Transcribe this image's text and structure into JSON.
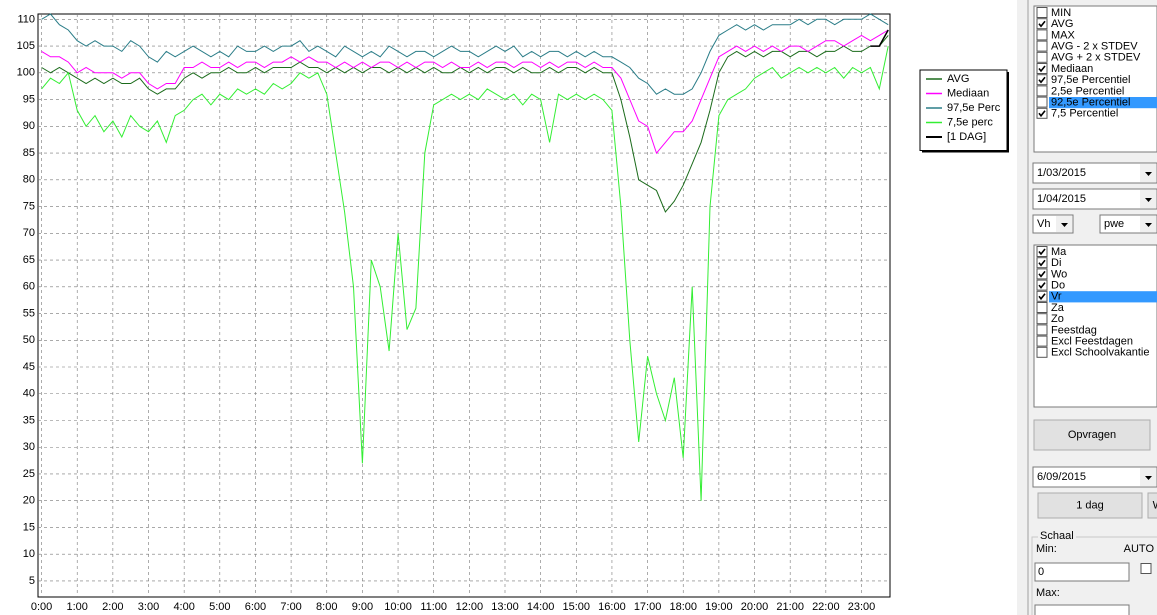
{
  "chart_data": {
    "type": "line",
    "x": [
      0,
      0.25,
      0.5,
      0.75,
      1,
      1.25,
      1.5,
      1.75,
      2,
      2.25,
      2.5,
      2.75,
      3,
      3.25,
      3.5,
      3.75,
      4,
      4.25,
      4.5,
      4.75,
      5,
      5.25,
      5.5,
      5.75,
      6,
      6.25,
      6.5,
      6.75,
      7,
      7.25,
      7.5,
      7.75,
      8,
      8.25,
      8.5,
      8.75,
      9,
      9.25,
      9.5,
      9.75,
      10,
      10.25,
      10.5,
      10.75,
      11,
      11.25,
      11.5,
      11.75,
      12,
      12.25,
      12.5,
      12.75,
      13,
      13.25,
      13.5,
      13.75,
      14,
      14.25,
      14.5,
      14.75,
      15,
      15.25,
      15.5,
      15.75,
      16,
      16.25,
      16.5,
      16.75,
      17,
      17.25,
      17.5,
      17.75,
      18,
      18.25,
      18.5,
      18.75,
      19,
      19.25,
      19.5,
      19.75,
      20,
      20.25,
      20.5,
      20.75,
      21,
      21.25,
      21.5,
      21.75,
      22,
      22.25,
      22.5,
      22.75,
      23,
      23.25,
      23.5,
      23.75
    ],
    "series": [
      {
        "name": "AVG",
        "color": "#1b6b1b",
        "values": [
          101,
          100,
          101,
          100,
          99,
          98,
          99,
          98,
          99,
          98,
          98,
          99,
          97,
          96,
          97,
          97,
          99,
          100,
          99,
          100,
          100,
          101,
          100,
          100,
          101,
          100,
          101,
          101,
          101,
          102,
          101,
          101,
          100,
          101,
          100,
          101,
          100,
          101,
          101,
          100,
          101,
          100,
          101,
          100,
          101,
          100,
          100,
          101,
          100,
          101,
          100,
          101,
          101,
          100,
          101,
          100,
          100,
          101,
          100,
          101,
          101,
          100,
          101,
          100,
          100,
          95,
          88,
          80,
          79,
          78,
          74,
          76,
          79,
          83,
          87,
          93,
          100,
          103,
          104,
          103,
          104,
          103,
          104,
          104,
          103,
          104,
          104,
          103,
          104,
          104,
          105,
          104,
          104,
          105,
          105,
          107
        ]
      },
      {
        "name": "Mediaan",
        "color": "#ff00ff",
        "values": [
          104,
          103,
          103,
          102,
          100,
          101,
          100,
          100,
          100,
          99,
          100,
          100,
          98,
          97,
          98,
          98,
          101,
          101,
          102,
          101,
          101,
          102,
          101,
          102,
          102,
          101,
          102,
          102,
          103,
          102,
          103,
          102,
          102,
          101,
          102,
          101,
          102,
          101,
          102,
          102,
          101,
          102,
          101,
          102,
          102,
          101,
          102,
          101,
          101,
          102,
          101,
          102,
          102,
          101,
          102,
          102,
          101,
          102,
          101,
          102,
          102,
          101,
          102,
          101,
          101,
          99,
          95,
          91,
          90,
          85,
          87,
          89,
          89,
          91,
          95,
          99,
          103,
          104,
          105,
          104,
          105,
          104,
          105,
          104,
          105,
          105,
          104,
          105,
          106,
          106,
          105,
          106,
          107,
          106,
          107,
          108
        ]
      },
      {
        "name": "97,5e Perc",
        "color": "#2b7d88",
        "values": [
          110,
          111,
          109,
          108,
          106,
          105,
          106,
          105,
          105,
          104,
          106,
          105,
          103,
          102,
          104,
          103,
          104,
          105,
          104,
          103,
          104,
          103,
          105,
          104,
          104,
          105,
          104,
          105,
          105,
          106,
          104,
          105,
          104,
          103,
          105,
          104,
          103,
          104,
          103,
          105,
          104,
          103,
          104,
          104,
          103,
          104,
          105,
          104,
          104,
          103,
          104,
          105,
          104,
          105,
          103,
          104,
          103,
          104,
          104,
          103,
          104,
          103,
          104,
          103,
          103,
          102,
          101,
          99,
          98,
          96,
          97,
          96,
          96,
          97,
          100,
          104,
          107,
          108,
          109,
          108,
          109,
          108,
          109,
          109,
          109,
          110,
          109,
          110,
          110,
          109,
          110,
          110,
          110,
          111,
          110,
          109
        ]
      },
      {
        "name": "7,5e perc",
        "color": "#33ee33",
        "values": [
          97,
          99,
          98,
          100,
          93,
          90,
          92,
          89,
          91,
          88,
          92,
          90,
          89,
          91,
          87,
          92,
          93,
          95,
          96,
          94,
          96,
          95,
          97,
          96,
          97,
          96,
          98,
          97,
          98,
          100,
          99,
          100,
          96,
          85,
          74,
          60,
          27,
          65,
          60,
          48,
          70,
          52,
          56,
          85,
          94,
          95,
          96,
          95,
          96,
          95,
          97,
          96,
          95,
          96,
          94,
          96,
          95,
          87,
          96,
          95,
          96,
          95,
          96,
          95,
          93,
          75,
          50,
          31,
          47,
          40,
          35,
          43,
          28,
          60,
          20,
          75,
          92,
          95,
          96,
          97,
          99,
          100,
          101,
          99,
          100,
          101,
          100,
          101,
          100,
          101,
          99,
          101,
          100,
          101,
          97,
          105
        ]
      },
      {
        "name": "[1 DAG]",
        "color": "#000000",
        "values": [
          null,
          null,
          null,
          null,
          null,
          null,
          null,
          null,
          null,
          null,
          null,
          null,
          null,
          null,
          null,
          null,
          null,
          null,
          null,
          null,
          null,
          null,
          null,
          null,
          null,
          null,
          null,
          null,
          null,
          null,
          null,
          null,
          null,
          null,
          null,
          null,
          null,
          null,
          null,
          null,
          null,
          null,
          null,
          null,
          null,
          null,
          null,
          null,
          null,
          null,
          null,
          null,
          null,
          null,
          null,
          null,
          null,
          null,
          null,
          null,
          null,
          null,
          null,
          null,
          null,
          null,
          null,
          null,
          null,
          null,
          null,
          null,
          null,
          null,
          null,
          null,
          null,
          null,
          null,
          null,
          null,
          null,
          null,
          null,
          null,
          null,
          null,
          null,
          null,
          null,
          null,
          null,
          null,
          105,
          105,
          108
        ]
      }
    ],
    "xlim": [
      -0.1,
      23.8
    ],
    "ylim": [
      2,
      111
    ],
    "xticks": [
      {
        "value": 0,
        "label": "0:00"
      },
      {
        "value": 1,
        "label": "1:00"
      },
      {
        "value": 2,
        "label": "2:00"
      },
      {
        "value": 3,
        "label": "3:00"
      },
      {
        "value": 4,
        "label": "4:00"
      },
      {
        "value": 5,
        "label": "5:00"
      },
      {
        "value": 6,
        "label": "6:00"
      },
      {
        "value": 7,
        "label": "7:00"
      },
      {
        "value": 8,
        "label": "8:00"
      },
      {
        "value": 9,
        "label": "9:00"
      },
      {
        "value": 10,
        "label": "10:00"
      },
      {
        "value": 11,
        "label": "11:00"
      },
      {
        "value": 12,
        "label": "12:00"
      },
      {
        "value": 13,
        "label": "13:00"
      },
      {
        "value": 14,
        "label": "14:00"
      },
      {
        "value": 15,
        "label": "15:00"
      },
      {
        "value": 16,
        "label": "16:00"
      },
      {
        "value": 17,
        "label": "17:00"
      },
      {
        "value": 18,
        "label": "18:00"
      },
      {
        "value": 19,
        "label": "19:00"
      },
      {
        "value": 20,
        "label": "20:00"
      },
      {
        "value": 21,
        "label": "21:00"
      },
      {
        "value": 22,
        "label": "22:00"
      },
      {
        "value": 23,
        "label": "23:00"
      }
    ],
    "yticks": [
      5,
      10,
      15,
      20,
      25,
      30,
      35,
      40,
      45,
      50,
      55,
      60,
      65,
      70,
      75,
      80,
      85,
      90,
      95,
      100,
      105,
      110
    ],
    "grid": true,
    "legend": "upper right"
  },
  "panel": {
    "series_list": [
      {
        "label": "MIN",
        "checked": false
      },
      {
        "label": "AVG",
        "checked": true
      },
      {
        "label": "MAX",
        "checked": false
      },
      {
        "label": "AVG - 2 x STDEV",
        "checked": false
      },
      {
        "label": "AVG + 2 x STDEV",
        "checked": false
      },
      {
        "label": "Mediaan",
        "checked": true
      },
      {
        "label": "97,5e Percentiel",
        "checked": true
      },
      {
        "label": "2,5e Percentiel",
        "checked": false
      },
      {
        "label": "92,5e Percentiel",
        "checked": false
      },
      {
        "label": "7,5 Percentiel",
        "checked": true
      }
    ],
    "series_selected": 8,
    "date_from": "1/03/2015",
    "date_to": "1/04/2015",
    "combo_a": "Vh",
    "combo_b": "pwe",
    "days": [
      {
        "label": "Ma",
        "checked": true
      },
      {
        "label": "Di",
        "checked": true
      },
      {
        "label": "Wo",
        "checked": true
      },
      {
        "label": "Do",
        "checked": true
      },
      {
        "label": "Vr",
        "checked": true
      },
      {
        "label": "Za",
        "checked": false
      },
      {
        "label": "Zo",
        "checked": false
      },
      {
        "label": "Feestdag",
        "checked": false
      },
      {
        "label": "Excl Feestdagen",
        "checked": false
      },
      {
        "label": "Excl Schoolvakantie",
        "checked": false
      }
    ],
    "days_selected": 4,
    "button_query": "Opvragen",
    "date_single": "6/09/2015",
    "button_day": "1 dag",
    "button_clear": "WIS",
    "scale": {
      "title": "Schaal",
      "min_label": "Min:",
      "auto_label": "AUTO",
      "min_value": 0,
      "max_label": "Max:"
    }
  }
}
